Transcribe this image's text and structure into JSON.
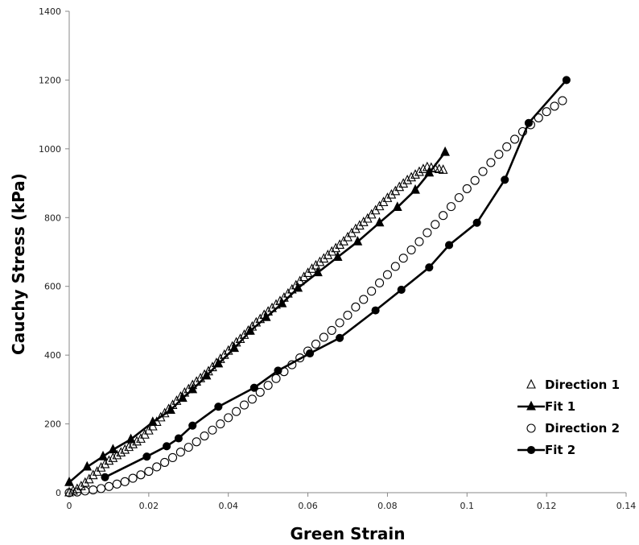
{
  "chart_data": {
    "type": "scatter",
    "title": "",
    "xlabel": "Green Strain",
    "ylabel": "Cauchy Stress (kPa)",
    "xlim": [
      0,
      0.14
    ],
    "ylim": [
      0,
      1400
    ],
    "xticks": [
      0,
      0.02,
      0.04,
      0.06,
      0.08,
      0.1,
      0.12,
      0.14
    ],
    "xtick_labels": [
      "0",
      "0.02",
      "0.04",
      "0.06",
      "0.08",
      "0.1",
      "0.12",
      "0.14"
    ],
    "yticks": [
      0,
      200,
      400,
      600,
      800,
      1000,
      1200,
      1400
    ],
    "ytick_labels": [
      "0",
      "200",
      "400",
      "600",
      "800",
      "1000",
      "1200",
      "1400"
    ],
    "grid": false,
    "legend_position": "bottom-right",
    "series": [
      {
        "name": "Direction 1",
        "marker": "triangle-open",
        "color": "#000000",
        "line": false,
        "x": [
          0.0,
          0.001,
          0.002,
          0.003,
          0.004,
          0.005,
          0.006,
          0.007,
          0.008,
          0.009,
          0.01,
          0.011,
          0.012,
          0.013,
          0.014,
          0.015,
          0.016,
          0.017,
          0.018,
          0.019,
          0.02,
          0.021,
          0.022,
          0.023,
          0.024,
          0.025,
          0.026,
          0.027,
          0.028,
          0.029,
          0.03,
          0.031,
          0.032,
          0.033,
          0.034,
          0.035,
          0.036,
          0.037,
          0.038,
          0.039,
          0.04,
          0.041,
          0.042,
          0.043,
          0.044,
          0.045,
          0.046,
          0.047,
          0.048,
          0.049,
          0.05,
          0.051,
          0.052,
          0.053,
          0.054,
          0.055,
          0.056,
          0.057,
          0.058,
          0.059,
          0.06,
          0.061,
          0.062,
          0.063,
          0.064,
          0.065,
          0.066,
          0.067,
          0.068,
          0.069,
          0.07,
          0.071,
          0.072,
          0.073,
          0.074,
          0.075,
          0.076,
          0.077,
          0.078,
          0.079,
          0.08,
          0.081,
          0.082,
          0.083,
          0.084,
          0.085,
          0.086,
          0.087,
          0.088,
          0.089,
          0.09,
          0.091,
          0.092,
          0.093,
          0.094
        ],
        "y": [
          0,
          5,
          10,
          18,
          28,
          38,
          50,
          60,
          72,
          82,
          92,
          100,
          108,
          116,
          124,
          132,
          140,
          148,
          156,
          168,
          180,
          192,
          205,
          218,
          230,
          242,
          254,
          266,
          278,
          290,
          300,
          312,
          322,
          332,
          342,
          352,
          364,
          376,
          388,
          400,
          412,
          424,
          436,
          446,
          458,
          470,
          482,
          494,
          504,
          516,
          526,
          536,
          546,
          556,
          566,
          578,
          590,
          602,
          614,
          626,
          638,
          650,
          660,
          670,
          680,
          690,
          700,
          710,
          720,
          730,
          742,
          754,
          766,
          776,
          786,
          796,
          808,
          820,
          832,
          844,
          856,
          866,
          876,
          888,
          898,
          908,
          916,
          924,
          932,
          940,
          946,
          944,
          942,
          940,
          938
        ]
      },
      {
        "name": "Fit 1",
        "marker": "triangle-filled",
        "color": "#000000",
        "line": true,
        "x": [
          0.0,
          0.0045,
          0.0085,
          0.011,
          0.0155,
          0.021,
          0.0255,
          0.0285,
          0.031,
          0.0345,
          0.0375,
          0.0415,
          0.0455,
          0.0495,
          0.0535,
          0.0575,
          0.0625,
          0.0675,
          0.0725,
          0.078,
          0.0825,
          0.087,
          0.0905,
          0.0945
        ],
        "y": [
          30,
          75,
          105,
          125,
          155,
          205,
          240,
          275,
          300,
          340,
          375,
          420,
          470,
          510,
          550,
          595,
          640,
          685,
          730,
          785,
          830,
          880,
          930,
          990
        ]
      },
      {
        "name": "Direction 2",
        "marker": "circle-open",
        "color": "#000000",
        "line": false,
        "x": [
          0.0,
          0.002,
          0.004,
          0.006,
          0.008,
          0.01,
          0.012,
          0.014,
          0.016,
          0.018,
          0.02,
          0.022,
          0.024,
          0.026,
          0.028,
          0.03,
          0.032,
          0.034,
          0.036,
          0.038,
          0.04,
          0.042,
          0.044,
          0.046,
          0.048,
          0.05,
          0.052,
          0.054,
          0.056,
          0.058,
          0.06,
          0.062,
          0.064,
          0.066,
          0.068,
          0.07,
          0.072,
          0.074,
          0.076,
          0.078,
          0.08,
          0.082,
          0.084,
          0.086,
          0.088,
          0.09,
          0.092,
          0.094,
          0.096,
          0.098,
          0.1,
          0.102,
          0.104,
          0.106,
          0.108,
          0.11,
          0.112,
          0.114,
          0.116,
          0.118,
          0.12,
          0.122,
          0.124
        ],
        "y": [
          0,
          2,
          5,
          8,
          12,
          18,
          25,
          32,
          42,
          52,
          62,
          75,
          88,
          102,
          118,
          132,
          148,
          165,
          182,
          200,
          218,
          236,
          255,
          272,
          292,
          312,
          332,
          352,
          372,
          392,
          412,
          432,
          452,
          472,
          494,
          516,
          540,
          562,
          586,
          610,
          634,
          658,
          682,
          706,
          730,
          756,
          780,
          806,
          832,
          858,
          884,
          908,
          934,
          960,
          984,
          1006,
          1028,
          1050,
          1070,
          1090,
          1108,
          1124,
          1140
        ]
      },
      {
        "name": "Fit 2",
        "marker": "circle-filled",
        "color": "#000000",
        "line": true,
        "x": [
          0.009,
          0.0195,
          0.0245,
          0.0275,
          0.031,
          0.0375,
          0.0465,
          0.0525,
          0.0605,
          0.068,
          0.077,
          0.0835,
          0.0905,
          0.0955,
          0.1025,
          0.1095,
          0.1155,
          0.125
        ],
        "y": [
          45,
          105,
          135,
          158,
          195,
          250,
          305,
          355,
          405,
          450,
          530,
          590,
          655,
          720,
          785,
          910,
          1075,
          1200
        ]
      }
    ]
  }
}
